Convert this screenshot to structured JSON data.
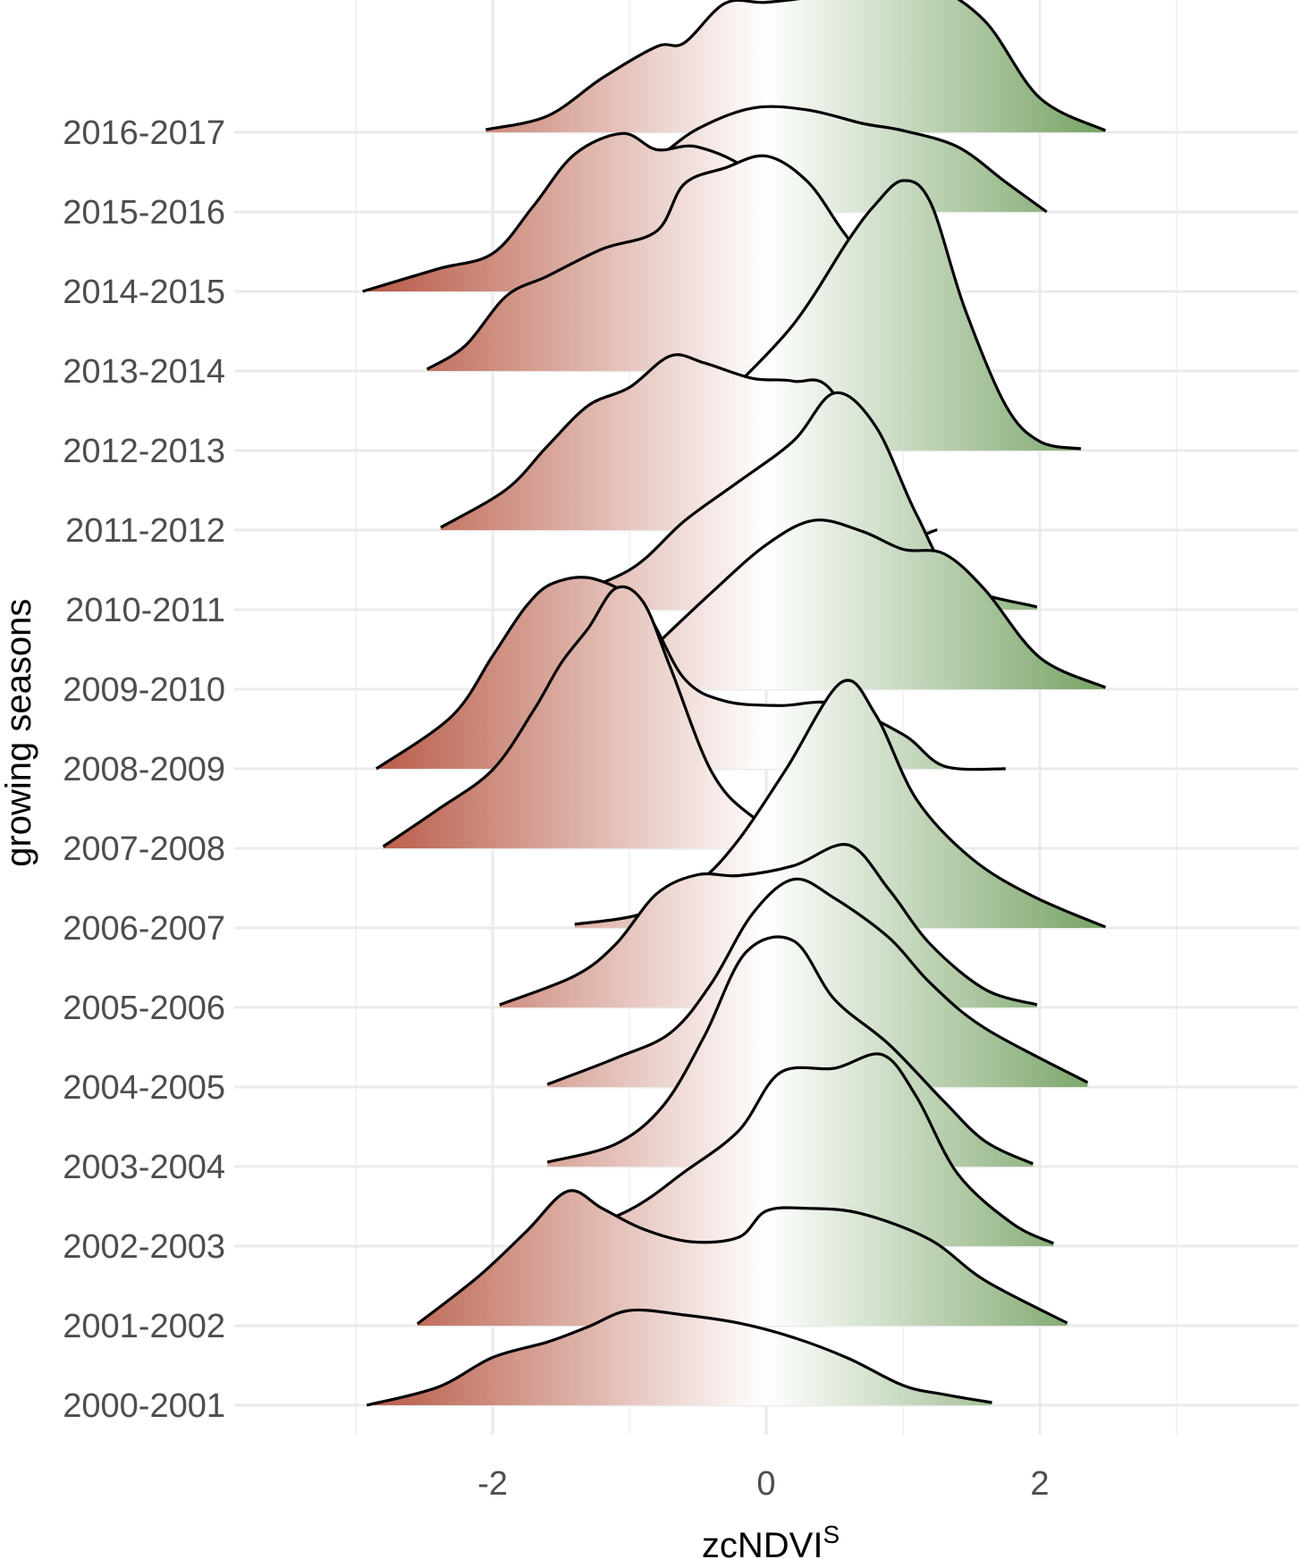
{
  "chart_data": {
    "type": "ridgeline",
    "title": "",
    "xlabel": "zcNDVI",
    "xlabel_superscript": "S",
    "ylabel": "growing seasons",
    "xlim": [
      -3.0,
      3.9
    ],
    "x_ticks": [
      "-2",
      "0",
      "2"
    ],
    "x_tick_values": [
      -2,
      0,
      2
    ],
    "grid": true,
    "fill_gradient": {
      "low": "#b5543f",
      "mid": "#ffffff",
      "high": "#5a8f44",
      "range": [
        -3,
        3
      ]
    },
    "categories": [
      "2000-2001",
      "2001-2002",
      "2002-2003",
      "2003-2004",
      "2004-2005",
      "2005-2006",
      "2006-2007",
      "2007-2008",
      "2008-2009",
      "2009-2010",
      "2010-2011",
      "2011-2012",
      "2012-2013",
      "2013-2014",
      "2014-2015",
      "2015-2016",
      "2016-2017"
    ],
    "series": [
      {
        "name": "2000-2001",
        "x": [
          -2.92,
          -2.4,
          -2.0,
          -1.6,
          -1.3,
          -1.0,
          -0.6,
          -0.2,
          0.2,
          0.6,
          1.0,
          1.3,
          1.65
        ],
        "density": [
          0.0,
          0.2,
          0.53,
          0.7,
          0.87,
          1.05,
          1.0,
          0.91,
          0.75,
          0.52,
          0.22,
          0.12,
          0.03
        ]
      },
      {
        "name": "2001-2002",
        "x": [
          -2.55,
          -2.1,
          -1.75,
          -1.45,
          -1.2,
          -0.9,
          -0.55,
          -0.2,
          0.0,
          0.3,
          0.7,
          1.2,
          1.6,
          2.2
        ],
        "density": [
          0.02,
          0.55,
          1.05,
          1.49,
          1.3,
          1.07,
          0.93,
          0.98,
          1.27,
          1.3,
          1.24,
          0.95,
          0.5,
          0.03
        ]
      },
      {
        "name": "2002-2003",
        "x": [
          -1.6,
          -1.0,
          -0.6,
          -0.2,
          0.1,
          0.5,
          0.85,
          1.1,
          1.4,
          1.8,
          2.1
        ],
        "density": [
          0.03,
          0.4,
          0.82,
          1.28,
          1.92,
          1.97,
          2.12,
          1.65,
          0.8,
          0.25,
          0.03
        ]
      },
      {
        "name": "2003-2004",
        "x": [
          -1.6,
          -1.1,
          -0.75,
          -0.45,
          -0.15,
          0.2,
          0.5,
          0.9,
          1.3,
          1.6,
          1.95
        ],
        "density": [
          0.05,
          0.25,
          0.68,
          1.45,
          2.37,
          2.5,
          1.85,
          1.35,
          0.72,
          0.28,
          0.03
        ]
      },
      {
        "name": "2004-2005",
        "x": [
          -1.6,
          -1.1,
          -0.7,
          -0.4,
          -0.1,
          0.2,
          0.5,
          0.9,
          1.2,
          1.6,
          2.35
        ],
        "density": [
          0.03,
          0.32,
          0.6,
          1.15,
          1.92,
          2.3,
          2.09,
          1.65,
          1.15,
          0.65,
          0.05
        ]
      },
      {
        "name": "2005-2006",
        "x": [
          -1.95,
          -1.4,
          -1.1,
          -0.8,
          -0.5,
          -0.2,
          0.2,
          0.6,
          0.9,
          1.2,
          1.6,
          1.98
        ],
        "density": [
          0.03,
          0.35,
          0.7,
          1.26,
          1.47,
          1.46,
          1.57,
          1.8,
          1.3,
          0.7,
          0.2,
          0.03
        ]
      },
      {
        "name": "2006-2007",
        "x": [
          -1.4,
          -0.9,
          -0.5,
          -0.2,
          0.15,
          0.55,
          0.8,
          1.1,
          1.5,
          1.95,
          2.48
        ],
        "density": [
          0.04,
          0.16,
          0.5,
          0.98,
          1.77,
          2.72,
          2.36,
          1.42,
          0.77,
          0.35,
          0.01
        ]
      },
      {
        "name": "2007-2008",
        "x": [
          -2.8,
          -2.4,
          -2.0,
          -1.7,
          -1.5,
          -1.3,
          -1.1,
          -0.9,
          -0.7,
          -0.4,
          -0.1,
          0.3,
          0.7
        ],
        "density": [
          0.02,
          0.43,
          0.87,
          1.53,
          2.05,
          2.44,
          2.88,
          2.73,
          2.0,
          0.85,
          0.35,
          0.05,
          0.02
        ]
      },
      {
        "name": "2008-2009",
        "x": [
          -2.85,
          -2.3,
          -2.0,
          -1.75,
          -1.55,
          -1.25,
          -0.9,
          -0.6,
          -0.3,
          0.1,
          0.5,
          1.0,
          1.3,
          1.75
        ],
        "density": [
          0.0,
          0.58,
          1.25,
          1.81,
          2.06,
          2.1,
          1.78,
          1.0,
          0.75,
          0.7,
          0.72,
          0.38,
          0.03,
          0.0
        ]
      },
      {
        "name": "2009-2010",
        "x": [
          -0.8,
          -0.4,
          0.0,
          0.35,
          0.7,
          1.0,
          1.3,
          1.6,
          2.0,
          2.48
        ],
        "density": [
          0.5,
          1.07,
          1.6,
          1.87,
          1.75,
          1.55,
          1.5,
          1.1,
          0.35,
          0.02
        ]
      },
      {
        "name": "2010-2011",
        "x": [
          -1.6,
          -1.0,
          -0.6,
          -0.2,
          0.2,
          0.5,
          0.8,
          1.1,
          1.4,
          1.98
        ],
        "density": [
          0.08,
          0.44,
          0.98,
          1.42,
          1.87,
          2.4,
          2.03,
          1.05,
          0.3,
          0.03
        ]
      },
      {
        "name": "2011-2012",
        "x": [
          -2.38,
          -1.9,
          -1.6,
          -1.3,
          -1.0,
          -0.7,
          -0.45,
          -0.1,
          0.2,
          0.5,
          0.95,
          1.25
        ],
        "density": [
          0.03,
          0.45,
          0.93,
          1.38,
          1.58,
          1.93,
          1.85,
          1.68,
          1.65,
          1.5,
          0.05,
          0.0
        ]
      },
      {
        "name": "2012-2013",
        "x": [
          -0.3,
          0.2,
          0.6,
          0.8,
          1.0,
          1.2,
          1.45,
          1.75,
          2.0,
          2.3
        ],
        "density": [
          0.6,
          1.4,
          2.33,
          2.73,
          2.99,
          2.75,
          1.58,
          0.5,
          0.1,
          0.02
        ]
      },
      {
        "name": "2013-2014",
        "x": [
          -2.48,
          -2.2,
          -1.9,
          -1.6,
          -1.2,
          -0.8,
          -0.6,
          -0.3,
          0.0,
          0.3,
          0.55,
          0.78
        ],
        "density": [
          0.02,
          0.28,
          0.83,
          1.05,
          1.35,
          1.55,
          2.07,
          2.25,
          2.38,
          2.1,
          1.57,
          1.1
        ]
      },
      {
        "name": "2014-2015",
        "x": [
          -2.95,
          -2.4,
          -2.0,
          -1.7,
          -1.4,
          -1.05,
          -0.8,
          -0.5,
          -0.1,
          0.2,
          0.5,
          0.75,
          1.0
        ],
        "density": [
          0.0,
          0.25,
          0.42,
          0.95,
          1.52,
          1.75,
          1.57,
          1.6,
          1.3,
          0.62,
          0.1,
          0.0,
          0.0
        ]
      },
      {
        "name": "2015-2016",
        "x": [
          -1.65,
          -1.2,
          -0.8,
          -0.5,
          -0.1,
          0.3,
          0.7,
          1.0,
          1.4,
          1.75,
          2.05
        ],
        "density": [
          0.0,
          0.25,
          0.6,
          0.92,
          1.15,
          1.13,
          0.98,
          0.9,
          0.72,
          0.33,
          0.0
        ]
      },
      {
        "name": "2016-2017",
        "x": [
          -2.05,
          -1.6,
          -1.2,
          -0.8,
          -0.6,
          -0.3,
          0.0,
          0.4,
          0.8,
          1.2,
          1.6,
          2.0,
          2.48
        ],
        "density": [
          0.03,
          0.18,
          0.6,
          0.95,
          0.99,
          1.43,
          1.44,
          1.52,
          1.7,
          1.63,
          1.23,
          0.38,
          0.02
        ]
      }
    ]
  }
}
